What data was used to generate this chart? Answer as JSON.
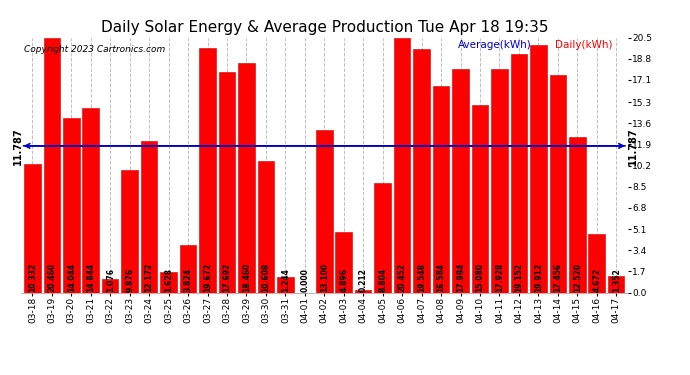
{
  "title": "Daily Solar Energy & Average Production Tue Apr 18 19:35",
  "copyright": "Copyright 2023 Cartronics.com",
  "legend_avg": "Average(kWh)",
  "legend_daily": "Daily(kWh)",
  "average_line": 11.787,
  "average_label": "11.787",
  "categories": [
    "03-18",
    "03-19",
    "03-20",
    "03-21",
    "03-22",
    "03-23",
    "03-24",
    "03-25",
    "03-26",
    "03-27",
    "03-28",
    "03-29",
    "03-30",
    "03-31",
    "04-01",
    "04-02",
    "04-03",
    "04-04",
    "04-05",
    "04-06",
    "04-07",
    "04-08",
    "04-09",
    "04-10",
    "04-11",
    "04-12",
    "04-13",
    "04-14",
    "04-15",
    "04-16",
    "04-17"
  ],
  "values": [
    10.332,
    20.46,
    14.044,
    14.844,
    1.076,
    9.876,
    12.172,
    1.628,
    3.824,
    19.672,
    17.692,
    18.46,
    10.608,
    1.244,
    0.0,
    13.1,
    4.896,
    0.212,
    8.804,
    20.452,
    19.548,
    16.584,
    17.984,
    15.08,
    17.928,
    19.152,
    19.912,
    17.456,
    12.52,
    4.672,
    1.352
  ],
  "bar_color": "#ff0000",
  "bar_edge_color": "#cc0000",
  "bg_color": "#ffffff",
  "grid_color": "#c0c0c0",
  "avg_line_color": "#0000cc",
  "title_color": "#000000",
  "copyright_color": "#000000",
  "ylabel_right_ticks": [
    0.0,
    1.7,
    3.4,
    5.1,
    6.8,
    8.5,
    10.2,
    11.9,
    13.6,
    15.3,
    17.1,
    18.8,
    20.5
  ],
  "ylim": [
    0,
    20.5
  ],
  "title_fontsize": 11,
  "tick_fontsize": 6.5,
  "bar_label_fontsize": 5.5,
  "copyright_fontsize": 6.5,
  "legend_fontsize": 7.5,
  "avg_annotation_fontsize": 7
}
